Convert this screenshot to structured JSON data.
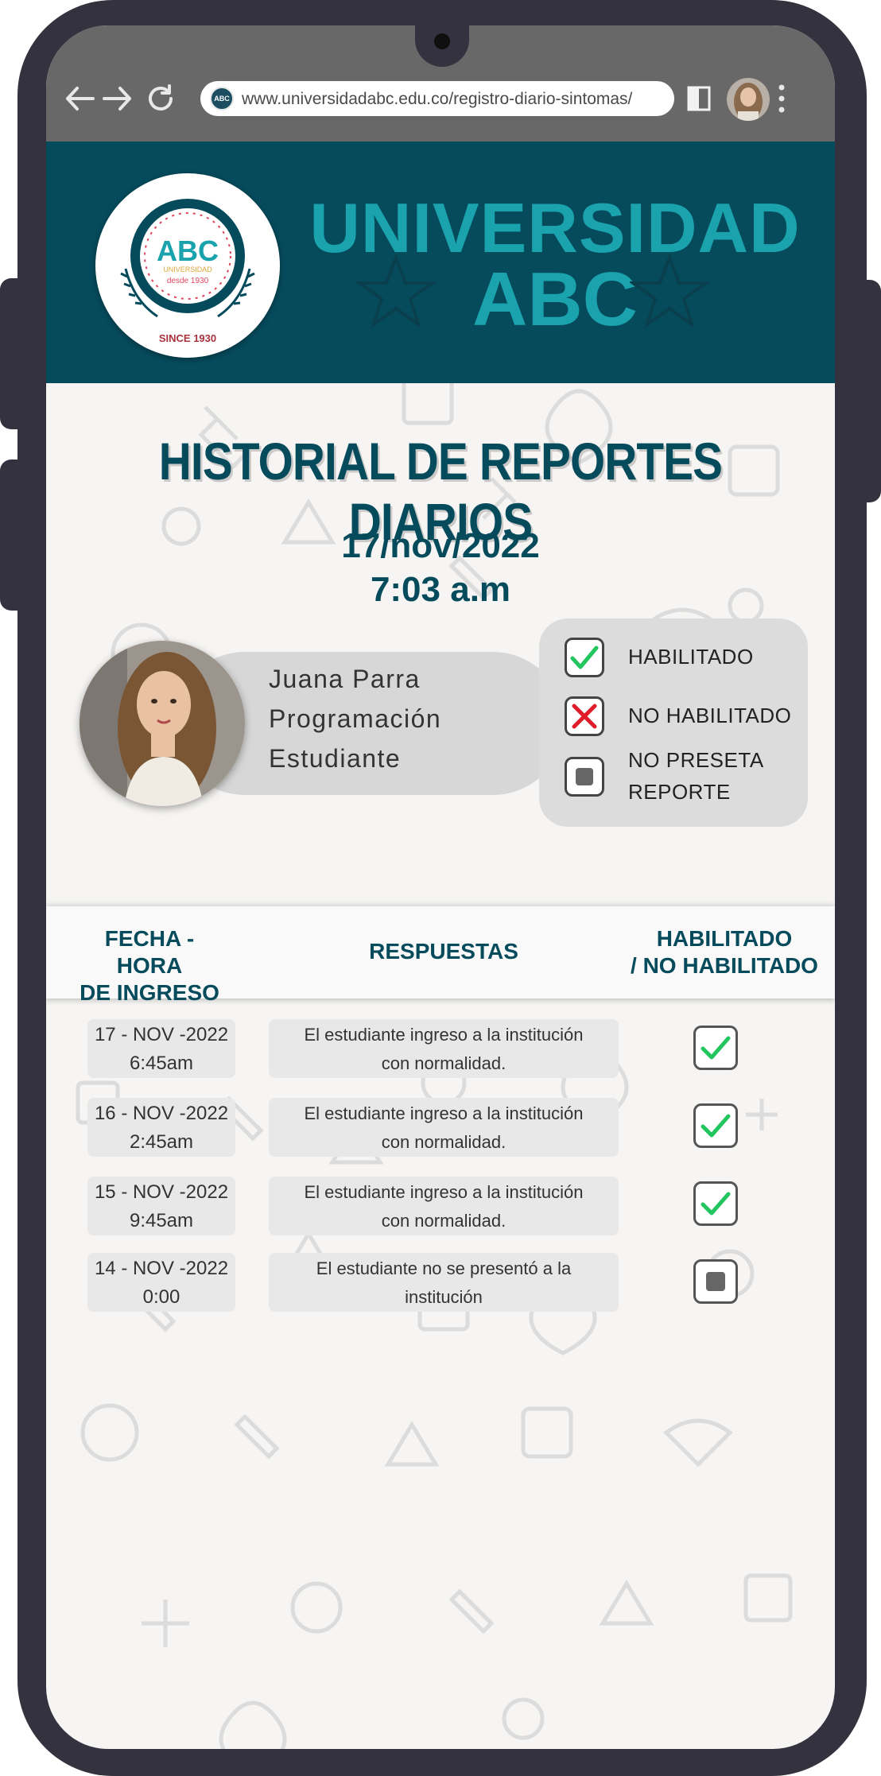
{
  "browser": {
    "url": "www.universidadabc.edu.co/registro-diario-sintomas/",
    "logo_text": "ABC"
  },
  "header": {
    "title_line1": "UNIVERSIDAD",
    "title_line2": "ABC",
    "logo": {
      "abbr": "ABC",
      "sub": "UNIVERSIDAD",
      "since_small": "desde 1930",
      "since": "SINCE 1930"
    }
  },
  "page": {
    "title": "HISTORIAL DE REPORTES DIARIOS",
    "date": "17/nov/2022",
    "time": "7:03 a.m"
  },
  "profile": {
    "name": "Juana Parra",
    "program": "Programación",
    "role": "Estudiante"
  },
  "legend": {
    "enabled": "HABILITADO",
    "not_enabled": "NO HABILITADO",
    "no_report_line1": "NO PRESETA",
    "no_report_line2": "REPORTE"
  },
  "table": {
    "col_date_line1": "FECHA - HORA",
    "col_date_line2": "DE INGRESO",
    "col_responses": "RESPUESTAS",
    "col_status_line1": "HABILITADO",
    "col_status_line2": "/ NO HABILITADO",
    "rows": [
      {
        "date": "17 - NOV -2022",
        "time": "6:45am",
        "resp_line1": "El estudiante  ingreso  a la institución",
        "resp_line2": "con normalidad.",
        "status": "habilitado"
      },
      {
        "date": "16 - NOV -2022",
        "time": "2:45am",
        "resp_line1": "El estudiante  ingreso  a la institución",
        "resp_line2": "con normalidad.",
        "status": "habilitado"
      },
      {
        "date": "15 - NOV -2022",
        "time": "9:45am",
        "resp_line1": "El estudiante  ingreso  a la institución",
        "resp_line2": "con normalidad.",
        "status": "habilitado"
      },
      {
        "date": "14 - NOV -2022",
        "time": "0:00",
        "resp_line1": "El estudiante  no se presentó a la",
        "resp_line2": "institución",
        "status": "no-reporte"
      }
    ]
  },
  "colors": {
    "brand_dark": "#064b5c",
    "brand_accent": "#1aa2ad",
    "check_green": "#22c55e",
    "cross_red": "#e11d2a"
  }
}
